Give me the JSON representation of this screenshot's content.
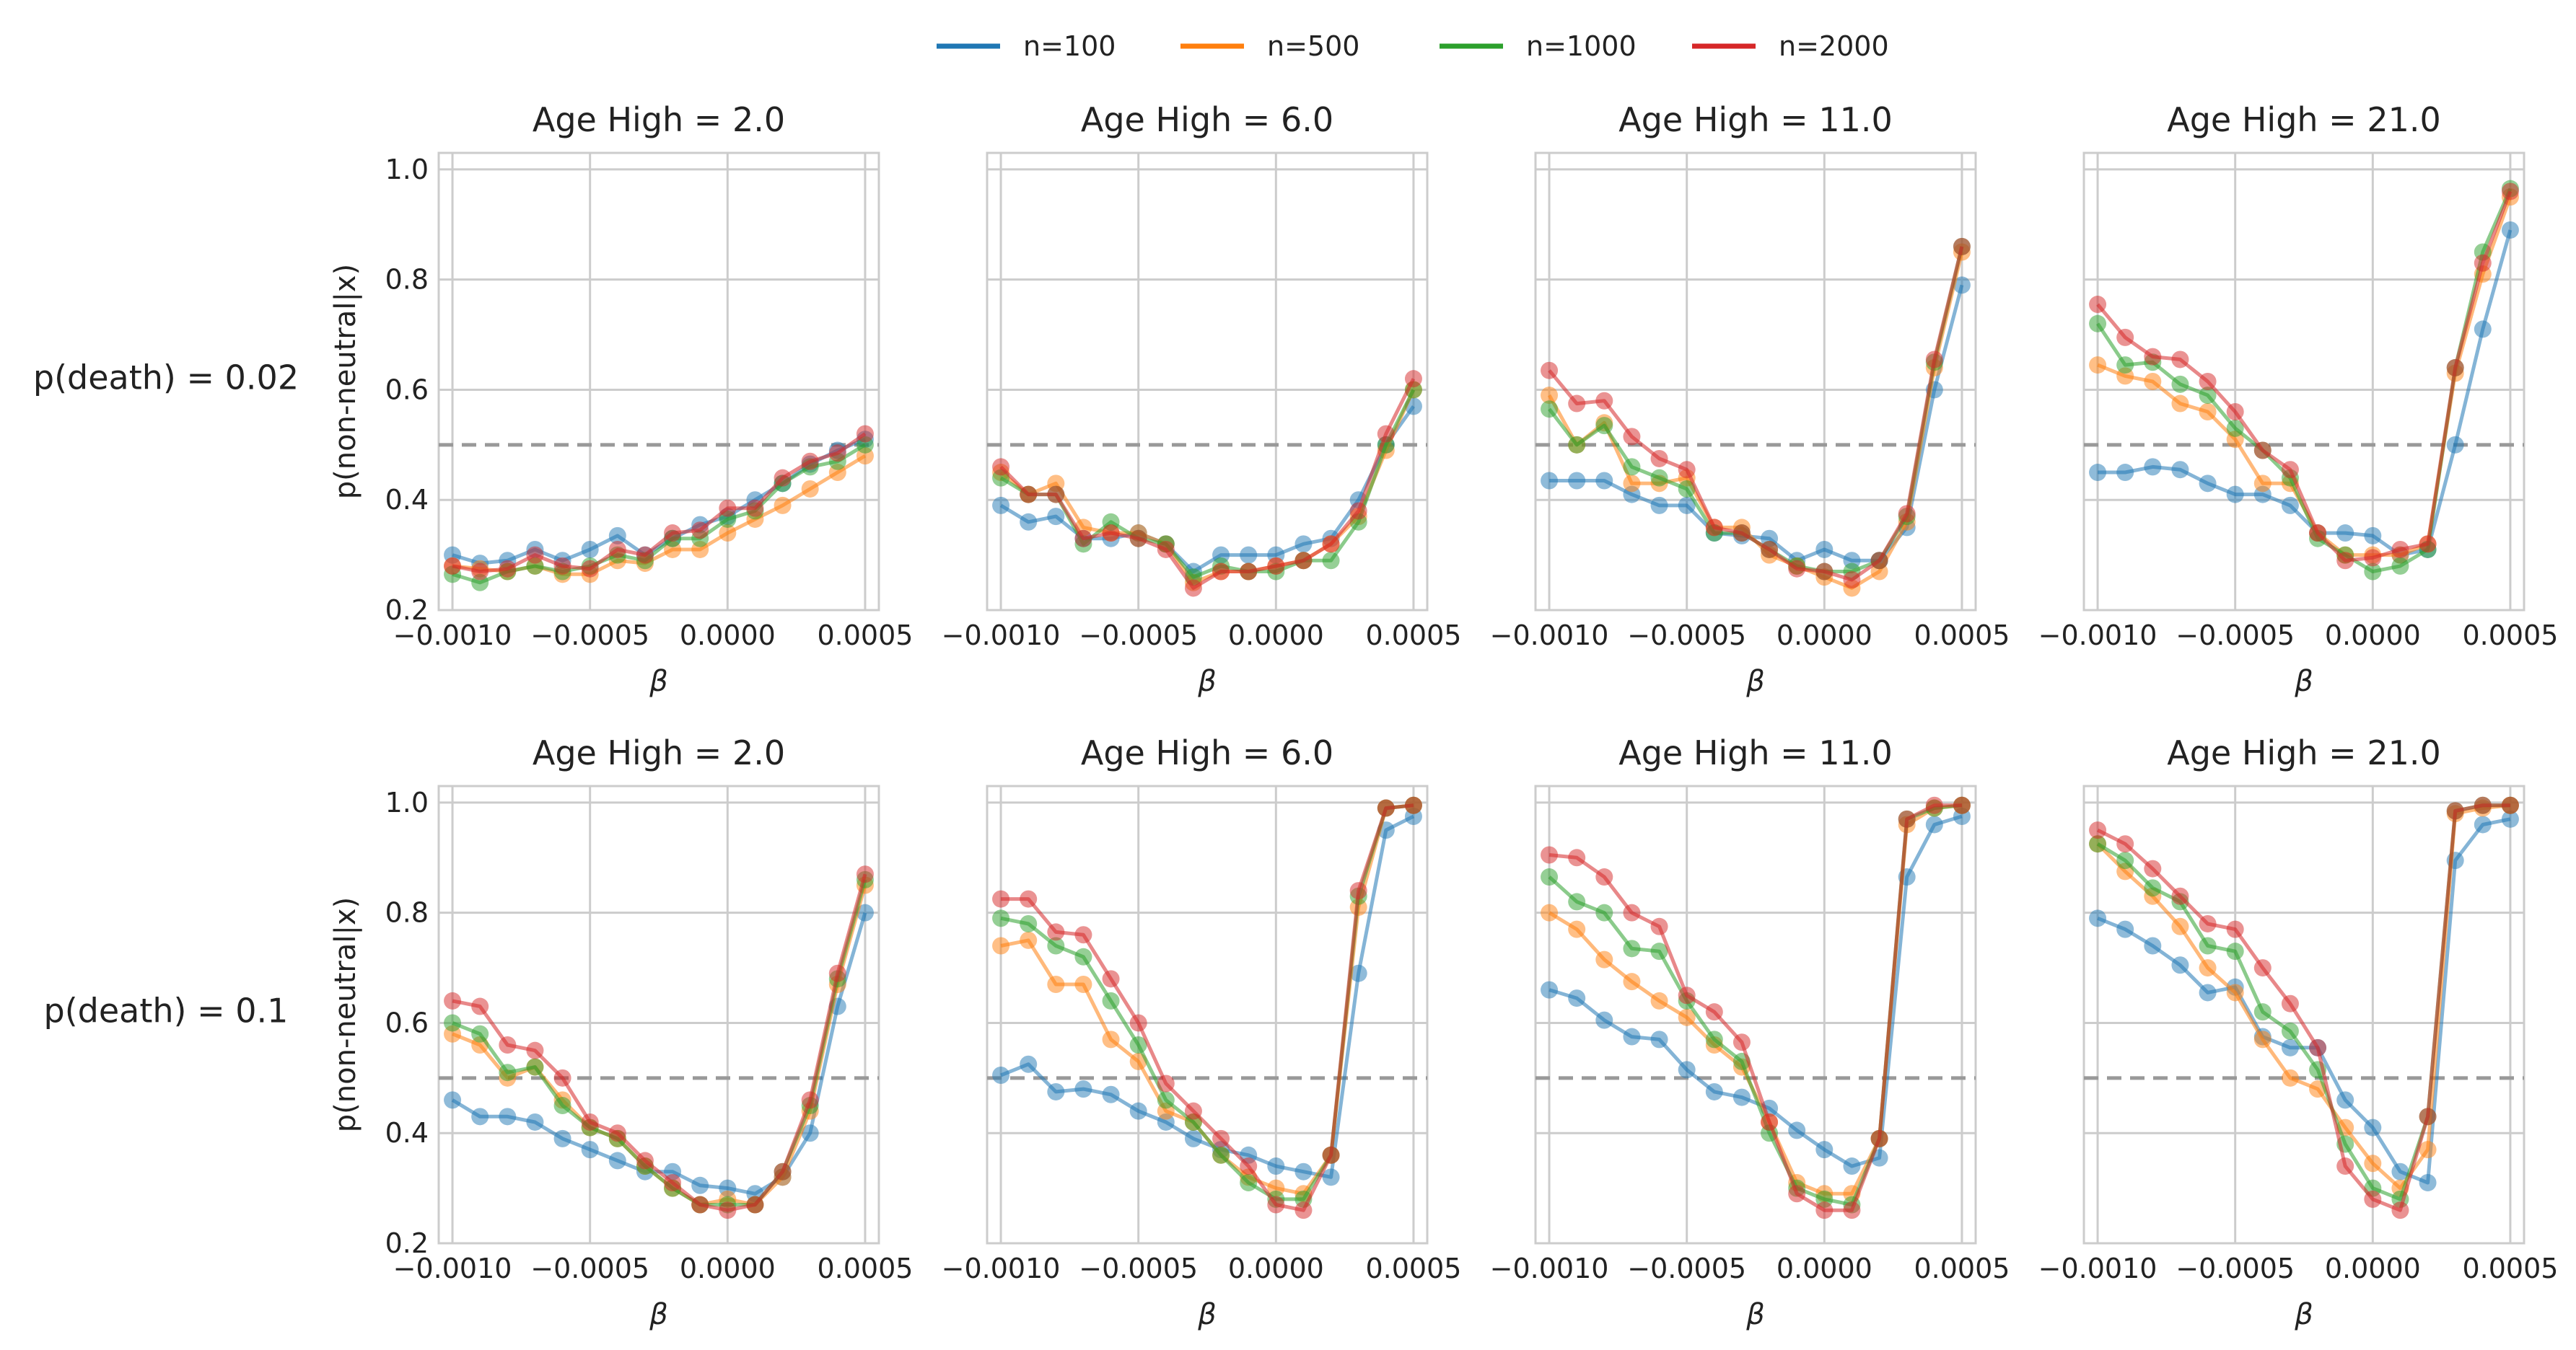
{
  "legend": [
    {
      "label": "n=100",
      "color": "#1f77b4"
    },
    {
      "label": "n=500",
      "color": "#ff7f0e"
    },
    {
      "label": "n=1000",
      "color": "#2ca02c"
    },
    {
      "label": "n=2000",
      "color": "#d62728"
    }
  ],
  "chart_data": {
    "type": "line",
    "x": [
      -0.001,
      -0.0009,
      -0.0008,
      -0.0007,
      -0.0006,
      -0.0005,
      -0.0004,
      -0.0003,
      -0.0002,
      -0.0001,
      0.0,
      0.0001,
      0.0002,
      0.0003,
      0.0004,
      0.0005
    ],
    "xlim": [
      -0.00105,
      0.00055
    ],
    "ylim": [
      0.2,
      1.03
    ],
    "xticks": [
      -0.001,
      -0.0005,
      0.0,
      0.0005
    ],
    "xtick_labels": [
      "−0.0010",
      "−0.0005",
      "0.0000",
      "0.0005"
    ],
    "yticks": [
      0.2,
      0.4,
      0.6,
      0.8,
      1.0
    ],
    "ytick_labels": [
      "0.2",
      "0.4",
      "0.6",
      "0.8",
      "1.0"
    ],
    "xlabel": "β",
    "ylabel": "p(non-neutral|x)",
    "reference_line": 0.5,
    "grid": true,
    "legend_position": "top-center",
    "rows": [
      {
        "label": "p(death) = 0.02",
        "panels": [
          {
            "title": "Age High = 2.0",
            "series": [
              {
                "name": "n=100",
                "values": [
                  0.3,
                  0.285,
                  0.29,
                  0.31,
                  0.29,
                  0.31,
                  0.335,
                  0.3,
                  0.33,
                  0.355,
                  0.37,
                  0.4,
                  0.43,
                  0.465,
                  0.49,
                  0.51
                ]
              },
              {
                "name": "n=500",
                "values": [
                  0.28,
                  0.275,
                  0.27,
                  0.28,
                  0.265,
                  0.265,
                  0.29,
                  0.285,
                  0.31,
                  0.31,
                  0.34,
                  0.365,
                  0.39,
                  0.42,
                  0.45,
                  0.48
                ]
              },
              {
                "name": "n=1000",
                "values": [
                  0.265,
                  0.25,
                  0.27,
                  0.28,
                  0.27,
                  0.28,
                  0.3,
                  0.29,
                  0.33,
                  0.33,
                  0.365,
                  0.38,
                  0.43,
                  0.46,
                  0.47,
                  0.5
                ]
              },
              {
                "name": "n=2000",
                "values": [
                  0.28,
                  0.27,
                  0.275,
                  0.3,
                  0.28,
                  0.275,
                  0.31,
                  0.3,
                  0.34,
                  0.345,
                  0.385,
                  0.385,
                  0.44,
                  0.47,
                  0.485,
                  0.52
                ]
              }
            ]
          },
          {
            "title": "Age High = 6.0",
            "series": [
              {
                "name": "n=100",
                "values": [
                  0.39,
                  0.36,
                  0.37,
                  0.33,
                  0.33,
                  0.34,
                  0.32,
                  0.27,
                  0.3,
                  0.3,
                  0.3,
                  0.32,
                  0.33,
                  0.4,
                  0.5,
                  0.57
                ]
              },
              {
                "name": "n=500",
                "values": [
                  0.45,
                  0.41,
                  0.43,
                  0.35,
                  0.34,
                  0.34,
                  0.32,
                  0.25,
                  0.27,
                  0.27,
                  0.28,
                  0.29,
                  0.32,
                  0.37,
                  0.49,
                  0.6
                ]
              },
              {
                "name": "n=1000",
                "values": [
                  0.44,
                  0.41,
                  0.41,
                  0.32,
                  0.36,
                  0.33,
                  0.32,
                  0.26,
                  0.28,
                  0.27,
                  0.27,
                  0.29,
                  0.29,
                  0.36,
                  0.5,
                  0.6
                ]
              },
              {
                "name": "n=2000",
                "values": [
                  0.46,
                  0.41,
                  0.41,
                  0.33,
                  0.34,
                  0.33,
                  0.31,
                  0.24,
                  0.27,
                  0.27,
                  0.28,
                  0.29,
                  0.32,
                  0.38,
                  0.52,
                  0.62
                ]
              }
            ]
          },
          {
            "title": "Age High = 11.0",
            "series": [
              {
                "name": "n=100",
                "values": [
                  0.435,
                  0.435,
                  0.435,
                  0.41,
                  0.39,
                  0.39,
                  0.34,
                  0.335,
                  0.33,
                  0.29,
                  0.31,
                  0.29,
                  0.29,
                  0.35,
                  0.6,
                  0.79
                ]
              },
              {
                "name": "n=500",
                "values": [
                  0.59,
                  0.5,
                  0.54,
                  0.43,
                  0.43,
                  0.44,
                  0.35,
                  0.35,
                  0.3,
                  0.28,
                  0.26,
                  0.24,
                  0.27,
                  0.36,
                  0.64,
                  0.85
                ]
              },
              {
                "name": "n=1000",
                "values": [
                  0.565,
                  0.5,
                  0.535,
                  0.46,
                  0.44,
                  0.42,
                  0.34,
                  0.34,
                  0.31,
                  0.28,
                  0.27,
                  0.27,
                  0.29,
                  0.37,
                  0.65,
                  0.86
                ]
              },
              {
                "name": "n=2000",
                "values": [
                  0.635,
                  0.575,
                  0.58,
                  0.515,
                  0.475,
                  0.455,
                  0.35,
                  0.34,
                  0.31,
                  0.275,
                  0.27,
                  0.255,
                  0.29,
                  0.375,
                  0.655,
                  0.86
                ]
              }
            ]
          },
          {
            "title": "Age High = 21.0",
            "series": [
              {
                "name": "n=100",
                "values": [
                  0.45,
                  0.45,
                  0.46,
                  0.455,
                  0.43,
                  0.41,
                  0.41,
                  0.39,
                  0.34,
                  0.34,
                  0.335,
                  0.3,
                  0.31,
                  0.5,
                  0.71,
                  0.89
                ]
              },
              {
                "name": "n=500",
                "values": [
                  0.645,
                  0.625,
                  0.615,
                  0.575,
                  0.56,
                  0.51,
                  0.43,
                  0.43,
                  0.34,
                  0.3,
                  0.3,
                  0.3,
                  0.32,
                  0.63,
                  0.81,
                  0.95
                ]
              },
              {
                "name": "n=1000",
                "values": [
                  0.72,
                  0.645,
                  0.65,
                  0.61,
                  0.59,
                  0.53,
                  0.49,
                  0.44,
                  0.33,
                  0.3,
                  0.27,
                  0.28,
                  0.31,
                  0.64,
                  0.85,
                  0.965
                ]
              },
              {
                "name": "n=2000",
                "values": [
                  0.755,
                  0.695,
                  0.66,
                  0.655,
                  0.615,
                  0.56,
                  0.49,
                  0.455,
                  0.34,
                  0.29,
                  0.295,
                  0.31,
                  0.32,
                  0.64,
                  0.83,
                  0.96
                ]
              }
            ]
          }
        ]
      },
      {
        "label": "p(death) = 0.1",
        "panels": [
          {
            "title": "Age High = 2.0",
            "series": [
              {
                "name": "n=100",
                "values": [
                  0.46,
                  0.43,
                  0.43,
                  0.42,
                  0.39,
                  0.37,
                  0.35,
                  0.33,
                  0.33,
                  0.305,
                  0.3,
                  0.29,
                  0.32,
                  0.4,
                  0.63,
                  0.8
                ]
              },
              {
                "name": "n=500",
                "values": [
                  0.58,
                  0.56,
                  0.5,
                  0.52,
                  0.46,
                  0.41,
                  0.39,
                  0.34,
                  0.3,
                  0.27,
                  0.28,
                  0.27,
                  0.32,
                  0.44,
                  0.67,
                  0.85
                ]
              },
              {
                "name": "n=1000",
                "values": [
                  0.6,
                  0.58,
                  0.51,
                  0.52,
                  0.45,
                  0.41,
                  0.39,
                  0.34,
                  0.3,
                  0.27,
                  0.27,
                  0.27,
                  0.33,
                  0.45,
                  0.68,
                  0.86
                ]
              },
              {
                "name": "n=2000",
                "values": [
                  0.64,
                  0.63,
                  0.56,
                  0.55,
                  0.5,
                  0.42,
                  0.4,
                  0.35,
                  0.31,
                  0.27,
                  0.26,
                  0.27,
                  0.33,
                  0.46,
                  0.69,
                  0.87
                ]
              }
            ]
          },
          {
            "title": "Age High = 6.0",
            "series": [
              {
                "name": "n=100",
                "values": [
                  0.505,
                  0.525,
                  0.475,
                  0.48,
                  0.47,
                  0.44,
                  0.42,
                  0.39,
                  0.37,
                  0.36,
                  0.34,
                  0.33,
                  0.32,
                  0.69,
                  0.95,
                  0.975
                ]
              },
              {
                "name": "n=500",
                "values": [
                  0.74,
                  0.75,
                  0.67,
                  0.67,
                  0.57,
                  0.53,
                  0.44,
                  0.42,
                  0.36,
                  0.32,
                  0.3,
                  0.29,
                  0.36,
                  0.81,
                  0.99,
                  0.995
                ]
              },
              {
                "name": "n=1000",
                "values": [
                  0.79,
                  0.78,
                  0.74,
                  0.72,
                  0.64,
                  0.56,
                  0.46,
                  0.42,
                  0.36,
                  0.31,
                  0.28,
                  0.28,
                  0.36,
                  0.83,
                  0.99,
                  0.995
                ]
              },
              {
                "name": "n=2000",
                "values": [
                  0.825,
                  0.825,
                  0.765,
                  0.76,
                  0.68,
                  0.6,
                  0.49,
                  0.44,
                  0.39,
                  0.34,
                  0.27,
                  0.26,
                  0.36,
                  0.84,
                  0.99,
                  0.995
                ]
              }
            ]
          },
          {
            "title": "Age High = 11.0",
            "series": [
              {
                "name": "n=100",
                "values": [
                  0.66,
                  0.645,
                  0.605,
                  0.575,
                  0.57,
                  0.515,
                  0.475,
                  0.465,
                  0.445,
                  0.405,
                  0.37,
                  0.34,
                  0.355,
                  0.865,
                  0.96,
                  0.975
                ]
              },
              {
                "name": "n=500",
                "values": [
                  0.8,
                  0.77,
                  0.715,
                  0.675,
                  0.64,
                  0.61,
                  0.56,
                  0.52,
                  0.42,
                  0.31,
                  0.29,
                  0.29,
                  0.39,
                  0.96,
                  0.99,
                  0.995
                ]
              },
              {
                "name": "n=1000",
                "values": [
                  0.865,
                  0.82,
                  0.8,
                  0.735,
                  0.73,
                  0.64,
                  0.57,
                  0.53,
                  0.4,
                  0.3,
                  0.28,
                  0.27,
                  0.39,
                  0.97,
                  0.99,
                  0.995
                ]
              },
              {
                "name": "n=2000",
                "values": [
                  0.905,
                  0.9,
                  0.865,
                  0.8,
                  0.775,
                  0.65,
                  0.62,
                  0.565,
                  0.42,
                  0.29,
                  0.26,
                  0.26,
                  0.39,
                  0.97,
                  0.995,
                  0.995
                ]
              }
            ]
          },
          {
            "title": "Age High = 21.0",
            "series": [
              {
                "name": "n=100",
                "values": [
                  0.79,
                  0.77,
                  0.74,
                  0.705,
                  0.655,
                  0.665,
                  0.575,
                  0.555,
                  0.555,
                  0.46,
                  0.41,
                  0.33,
                  0.31,
                  0.895,
                  0.96,
                  0.97
                ]
              },
              {
                "name": "n=500",
                "values": [
                  0.925,
                  0.875,
                  0.83,
                  0.775,
                  0.7,
                  0.655,
                  0.57,
                  0.5,
                  0.48,
                  0.41,
                  0.345,
                  0.3,
                  0.37,
                  0.98,
                  0.99,
                  0.995
                ]
              },
              {
                "name": "n=1000",
                "values": [
                  0.925,
                  0.895,
                  0.845,
                  0.82,
                  0.74,
                  0.73,
                  0.62,
                  0.585,
                  0.515,
                  0.38,
                  0.3,
                  0.28,
                  0.43,
                  0.985,
                  0.995,
                  0.995
                ]
              },
              {
                "name": "n=2000",
                "values": [
                  0.95,
                  0.925,
                  0.88,
                  0.83,
                  0.78,
                  0.77,
                  0.7,
                  0.635,
                  0.555,
                  0.34,
                  0.28,
                  0.26,
                  0.43,
                  0.985,
                  0.995,
                  0.995
                ]
              }
            ]
          }
        ]
      }
    ]
  }
}
